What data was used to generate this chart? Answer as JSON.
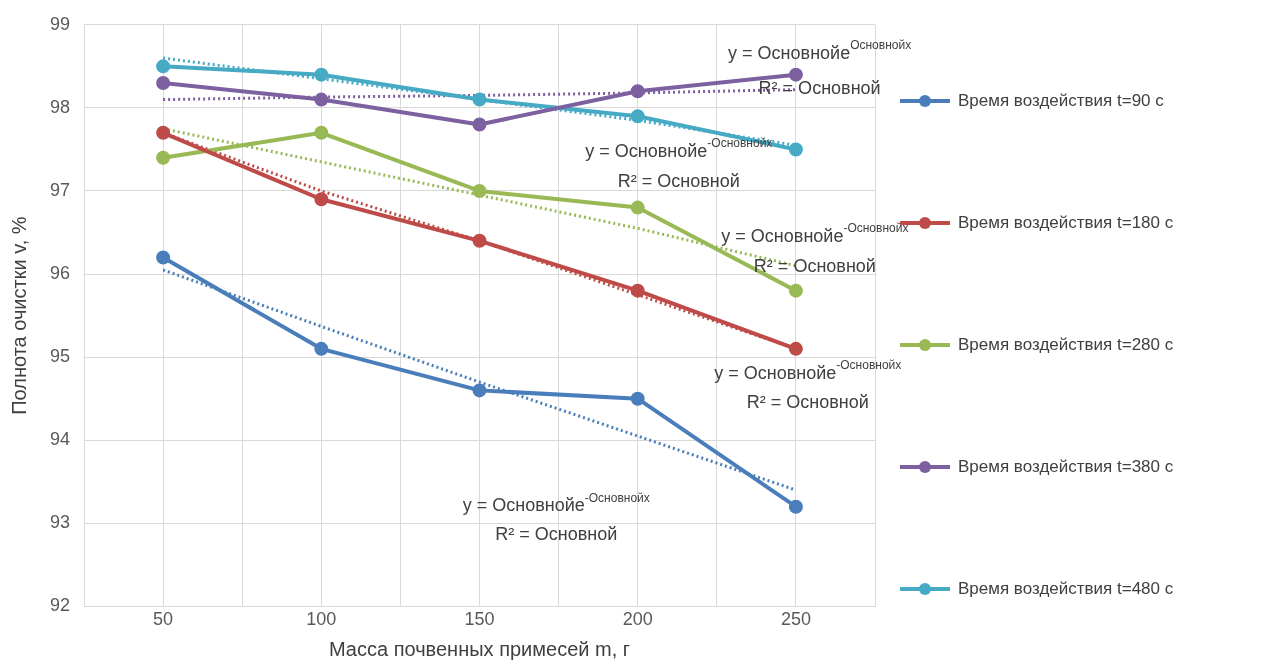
{
  "chart_data": {
    "type": "line",
    "xlabel": "Масса почвенных примесей m, г",
    "ylabel": "Полнота очистки v, %",
    "x": [
      50,
      100,
      150,
      200,
      250
    ],
    "xlim": [
      25,
      275
    ],
    "xticks": [
      {
        "value": 25,
        "label": null
      },
      50,
      {
        "value": 75,
        "label": null
      },
      100,
      {
        "value": 125,
        "label": null
      },
      150,
      {
        "value": 175,
        "label": null
      },
      200,
      {
        "value": 225,
        "label": null
      },
      250,
      {
        "value": 275,
        "label": null
      }
    ],
    "ylim": [
      92,
      99
    ],
    "yticks": [
      92,
      93,
      94,
      95,
      96,
      97,
      98,
      99
    ],
    "grid": true,
    "legend": "right",
    "marker": "circle",
    "line_style": "solid",
    "series": [
      {
        "name": "Время воздействия t=90 с",
        "color": "#4a7ebb",
        "values": [
          96.2,
          95.1,
          94.6,
          94.5,
          93.2
        ]
      },
      {
        "name": "Время воздействия t=180 с",
        "color": "#be4b48",
        "values": [
          97.7,
          96.9,
          96.4,
          95.8,
          95.1
        ]
      },
      {
        "name": "Время воздействия t=280 с",
        "color": "#98b954",
        "values": [
          97.4,
          97.7,
          97.0,
          96.8,
          95.8
        ]
      },
      {
        "name": "Время воздействия t=380 с",
        "color": "#7d60a0",
        "values": [
          98.3,
          98.1,
          97.8,
          98.2,
          98.4
        ]
      },
      {
        "name": "Время воздействия t=480 с",
        "color": "#46aac5",
        "values": [
          98.5,
          98.4,
          98.1,
          97.9,
          97.5
        ]
      },
      {
        "type": "line",
        "color": "#4a7ebb",
        "marker": "none",
        "line_style": "dotted",
        "x": [
          50,
          100,
          150,
          200,
          250
        ],
        "values": [
          96.05,
          95.37,
          94.7,
          94.05,
          93.4
        ]
      },
      {
        "type": "line",
        "color": "#be4b48",
        "marker": "none",
        "line_style": "dotted",
        "x": [
          50,
          100,
          150,
          200,
          250
        ],
        "values": [
          97.7,
          97.0,
          96.4,
          95.75,
          95.1
        ]
      },
      {
        "type": "line",
        "color": "#98b954",
        "marker": "none",
        "line_style": "dotted",
        "x": [
          50,
          100,
          150,
          200,
          250
        ],
        "values": [
          97.75,
          97.35,
          96.95,
          96.55,
          96.1
        ]
      },
      {
        "type": "line",
        "color": "#7d60a0",
        "marker": "none",
        "line_style": "dotted",
        "x": [
          50,
          100,
          150,
          200,
          250
        ],
        "values": [
          98.1,
          98.13,
          98.15,
          98.18,
          98.22
        ]
      },
      {
        "type": "line",
        "color": "#46aac5",
        "marker": "none",
        "line_style": "dotted",
        "x": [
          50,
          100,
          150,
          200,
          250
        ],
        "values": [
          98.6,
          98.35,
          98.1,
          97.85,
          97.55
        ]
      }
    ],
    "annotations": [
      "y = Основнойe$^{Основнойx}$",
      "R² = Основной",
      "y = Основнойe$^{-Основнойx}$",
      "R² = Основной",
      "y = Основнойe$^{-Основнойx}$",
      "R² = Основной",
      "y = Основнойe$^{-Основнойx}$",
      "R² = Основной",
      "y = Основнойe$^{-Основнойx}$",
      "R² = Основной"
    ]
  }
}
